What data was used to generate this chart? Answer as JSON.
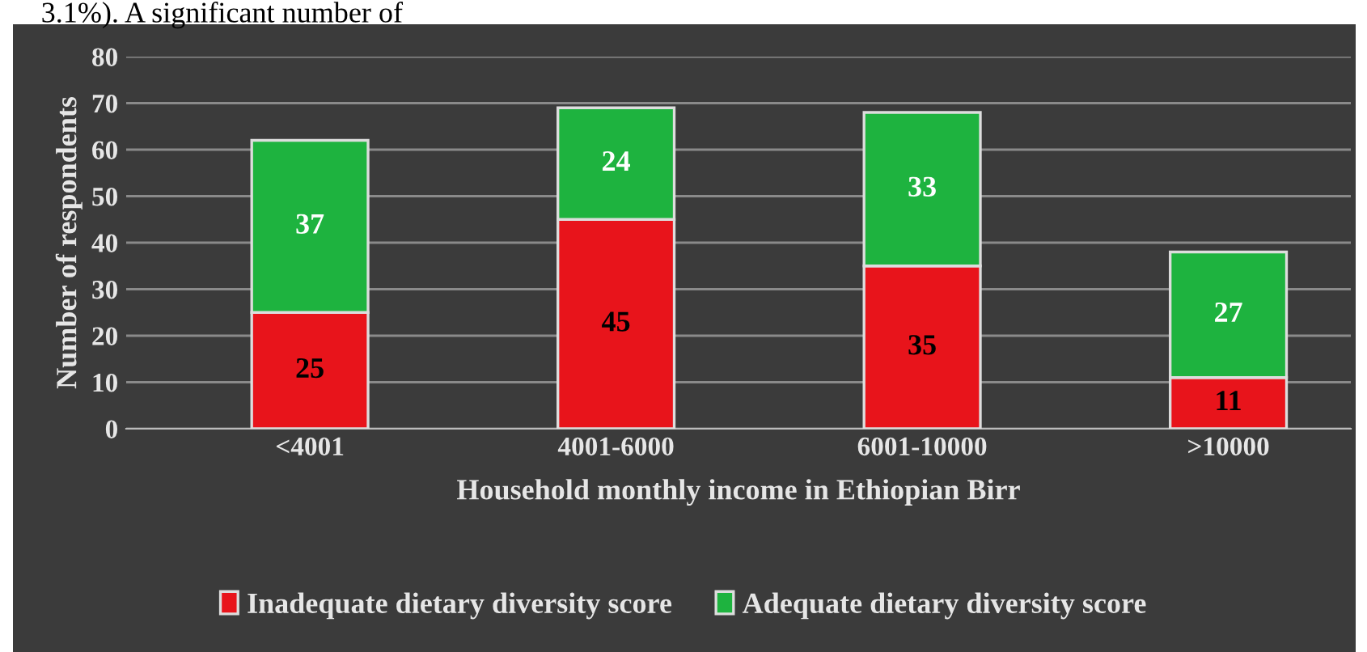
{
  "chart_data": {
    "type": "bar",
    "stacked": true,
    "xlabel": "Household monthly income in Ethiopian Birr",
    "ylabel": "Number of respondents",
    "categories": [
      "<4001",
      "4001-6000",
      "6001-10000",
      ">10000"
    ],
    "series": [
      {
        "name": "Inadequate dietary diversity score",
        "color": "#e8141b",
        "values": [
          25,
          45,
          35,
          11
        ]
      },
      {
        "name": "Adequate dietary diversity score",
        "color": "#1eb33f",
        "values": [
          37,
          24,
          33,
          27
        ]
      }
    ],
    "ylim": [
      0,
      80
    ],
    "yticks": [
      0,
      10,
      20,
      30,
      40,
      50,
      60,
      70,
      80
    ],
    "grid": "y",
    "legend": "bottom",
    "data_labels": true,
    "annotations": [
      "3.1%). A significant number of"
    ]
  }
}
